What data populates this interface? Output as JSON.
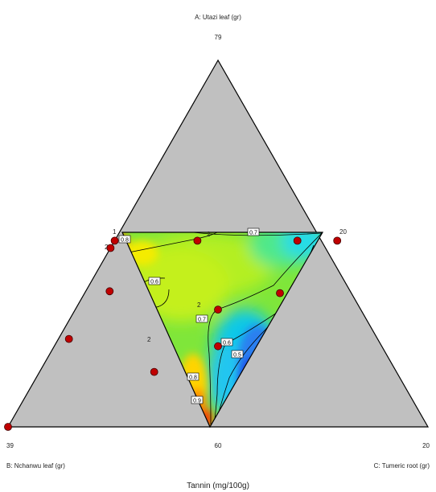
{
  "chart_data": {
    "type": "ternary-contour",
    "title": "Tannin (mg/100g)",
    "axes": {
      "A": {
        "label": "A: Utazi leaf (gr)",
        "max": 79
      },
      "B": {
        "label": "B: Nchanwu leaf (gr)",
        "max": 39
      },
      "C": {
        "label": "C: Tumeric root (gr)",
        "max": 20
      }
    },
    "region_corner_labels": {
      "left_top": "1",
      "right_top": "20",
      "bottom": "60"
    },
    "contour_labels": [
      "0.8",
      "0.7",
      "0.6",
      "0.7",
      "0.6",
      "0.5",
      "0.8",
      "0.9"
    ],
    "replicate_labels": [
      "2",
      "2",
      "2",
      "2"
    ],
    "design_points": [
      {
        "a": 0.508,
        "c": 0.0
      },
      {
        "a": 0.508,
        "c": 0.197
      },
      {
        "a": 0.508,
        "c": 0.435
      },
      {
        "a": 0.508,
        "c": 0.53
      },
      {
        "a": 0.488,
        "c": 0.0
      },
      {
        "a": 0.37,
        "c": 0.057
      },
      {
        "a": 0.32,
        "c": 0.34
      },
      {
        "a": 0.365,
        "c": 0.465
      },
      {
        "a": 0.24,
        "c": 0.025
      },
      {
        "a": 0.15,
        "c": 0.273
      },
      {
        "a": 0.22,
        "c": 0.39
      },
      {
        "a": 0.0,
        "c": 0.0
      }
    ]
  }
}
